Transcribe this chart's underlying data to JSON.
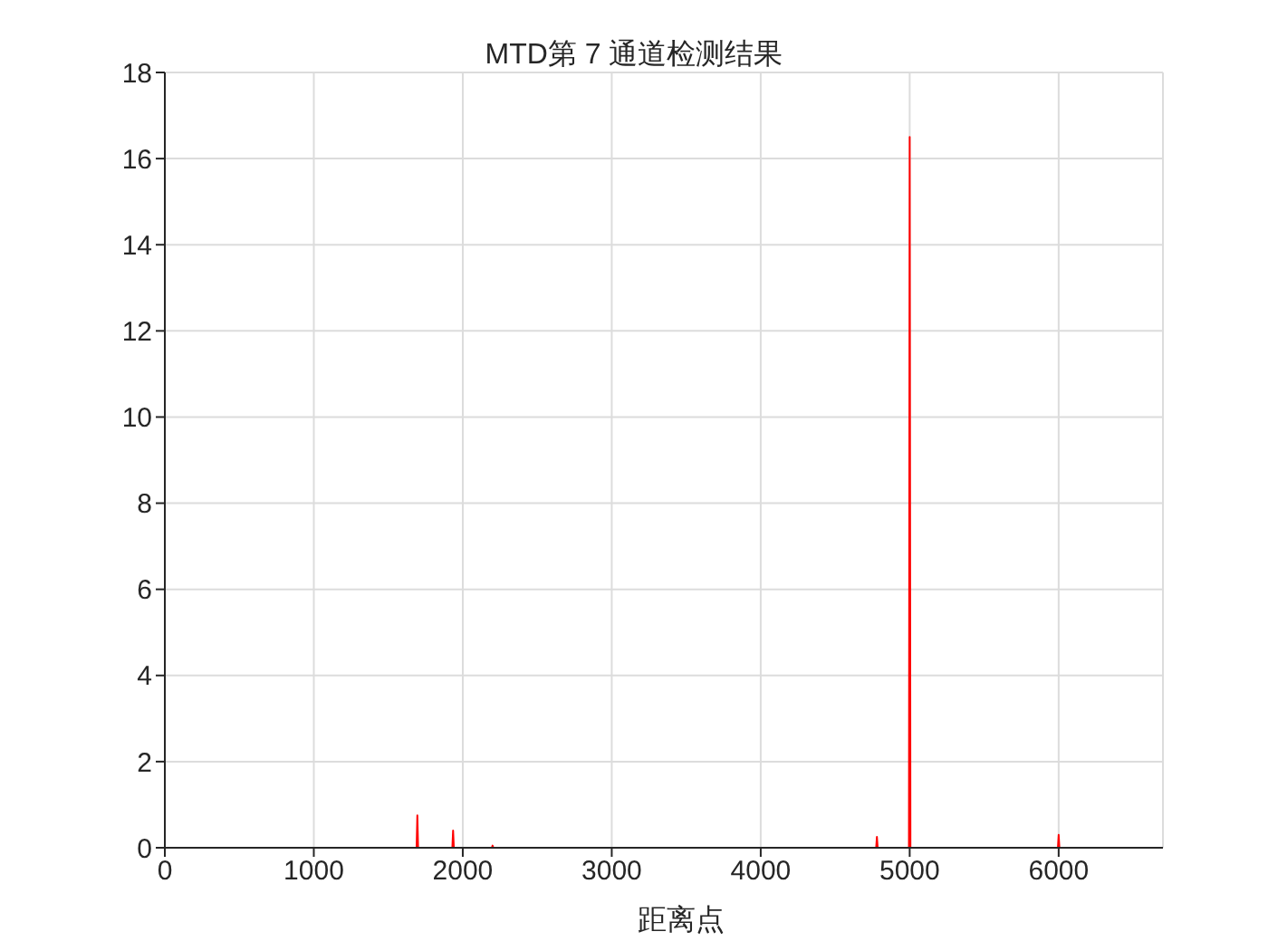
{
  "chart_data": {
    "type": "line",
    "title": "MTD第 7 通道检测结果",
    "xlabel": "距离点",
    "x": [
      0,
      1690,
      1695,
      1700,
      1930,
      1935,
      1940,
      2195,
      2200,
      2205,
      4775,
      4780,
      4785,
      4995,
      5000,
      5005,
      5995,
      6000,
      6005,
      6700
    ],
    "series": [
      {
        "color": "#ff0000",
        "values": [
          0,
          0,
          0.75,
          0,
          0,
          0.4,
          0,
          0,
          0.05,
          0,
          0,
          0.25,
          0,
          0,
          16.5,
          0,
          0,
          0.3,
          0,
          0
        ]
      }
    ],
    "xlim": [
      0,
      6700
    ],
    "xticks": [
      0,
      1000,
      2000,
      3000,
      4000,
      5000,
      6000
    ],
    "ylim": [
      0,
      18
    ],
    "yticks": [
      0,
      2,
      4,
      6,
      8,
      10,
      12,
      14,
      16,
      18
    ],
    "grid": true,
    "marker": "none",
    "line_style": "solid"
  }
}
